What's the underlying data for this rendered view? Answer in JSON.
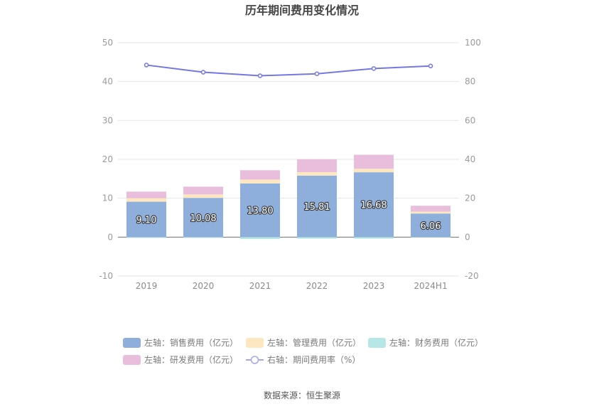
{
  "chart_data": {
    "type": "bar",
    "title": "历年期间费用变化情况",
    "categories": [
      "2019",
      "2020",
      "2021",
      "2022",
      "2023",
      "2024H1"
    ],
    "series": [
      {
        "name": "左轴：销售费用（亿元）",
        "axis": "left",
        "color": "#8eaedb",
        "values": [
          9.1,
          10.08,
          13.8,
          15.81,
          16.68,
          6.06
        ],
        "data_labels": [
          "9.10",
          "10.08",
          "13.80",
          "15.81",
          "16.68",
          "6.06"
        ]
      },
      {
        "name": "左轴：管理费用（亿元）",
        "axis": "left",
        "color": "#fde7c0",
        "values": [
          0.9,
          0.9,
          1.0,
          0.9,
          0.9,
          0.5
        ]
      },
      {
        "name": "左轴：财务费用（亿元）",
        "axis": "left",
        "color": "#b7e6e6",
        "values": [
          -0.2,
          -0.2,
          -0.5,
          -0.4,
          -0.4,
          -0.1
        ]
      },
      {
        "name": "左轴：研发费用（亿元）",
        "axis": "left",
        "color": "#e9bddc",
        "values": [
          1.7,
          2.0,
          2.4,
          3.3,
          3.6,
          1.5
        ]
      },
      {
        "name": "右轴：期间费用率（%）",
        "axis": "right",
        "type": "line",
        "color": "#7478e2",
        "values": [
          88.5,
          84.8,
          83.0,
          84.0,
          86.7,
          88.0
        ]
      }
    ],
    "left_axis": {
      "ylim": [
        -10,
        50
      ],
      "ticks": [
        "-10",
        "0",
        "10",
        "20",
        "30",
        "40",
        "50"
      ]
    },
    "right_axis": {
      "ylim": [
        -20,
        100
      ],
      "ticks": [
        "-20",
        "0",
        "20",
        "40",
        "60",
        "80",
        "100"
      ]
    },
    "grid": true,
    "legend_position": "bottom",
    "source": "数据来源：恒生聚源"
  }
}
